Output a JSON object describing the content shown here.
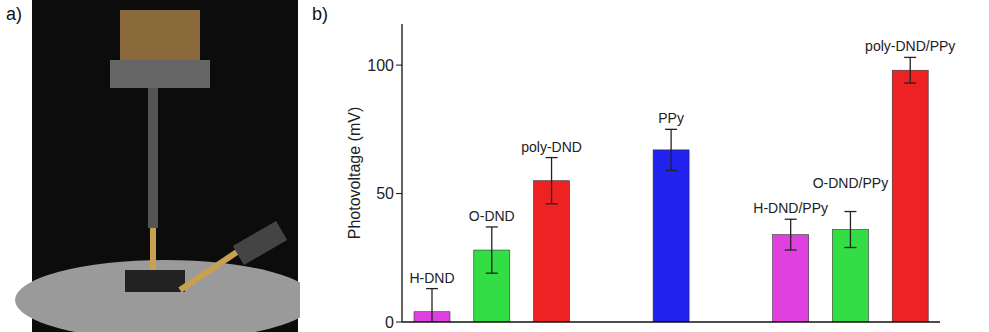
{
  "panel_labels": [
    "a)",
    "b)"
  ],
  "chart_data": {
    "type": "bar",
    "categories": [
      "H-DND",
      "O-DND",
      "poly-DND",
      null,
      "PPy",
      null,
      "H-DND/PPy",
      "O-DND/PPy",
      "poly-DND/PPy"
    ],
    "values": [
      4,
      28,
      55,
      null,
      67,
      null,
      34,
      36,
      98
    ],
    "errors": [
      9,
      9,
      9,
      null,
      8,
      null,
      6,
      7,
      5
    ],
    "colors": [
      "#e040e0",
      "#33dd44",
      "#ee2222",
      null,
      "#2222ee",
      null,
      "#e040e0",
      "#33dd44",
      "#ee2222"
    ],
    "y_label": "Photovoltage (mV)",
    "ylim": [
      0,
      116
    ],
    "yticks": [
      0,
      50,
      100
    ],
    "tick_labels": "y",
    "grid": false
  }
}
